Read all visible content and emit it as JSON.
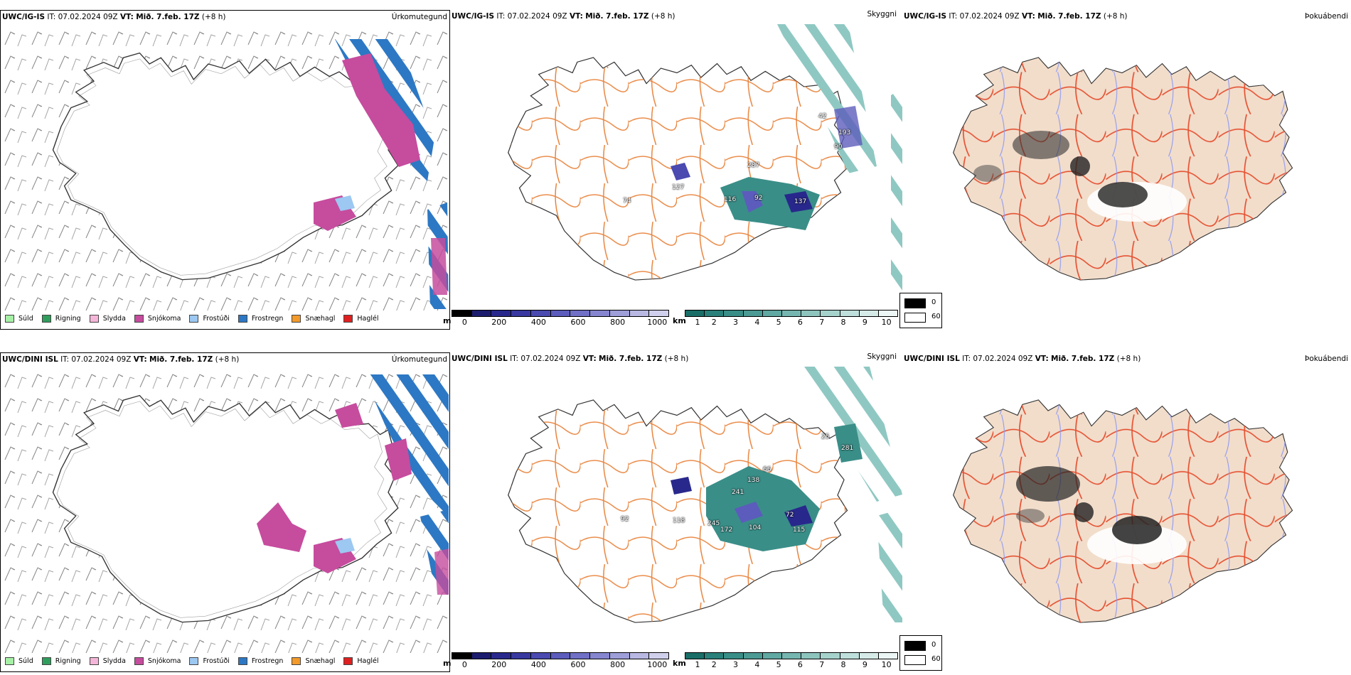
{
  "rows": [
    {
      "precip": {
        "model": "UWC/IG-IS",
        "it_label": "IT:",
        "it_value": "07.02.2024 09Z",
        "vt_label": "VT:",
        "vt_value": "Mið. 7.feb. 17Z",
        "lead": "(+8 h)",
        "name": "Úrkomutegund"
      },
      "cloud": {
        "model": "UWC/IG-IS",
        "it_label": "IT:",
        "it_value": "07.02.2024 09Z",
        "vt_label": "VT:",
        "vt_value": "Mið. 7.feb. 17Z",
        "lead": "(+8 h)",
        "name": "Skyggni",
        "labels": [
          "42",
          "193",
          "90",
          "287",
          "127",
          "116",
          "92",
          "137",
          "74"
        ]
      },
      "fog": {
        "model": "UWC/IG-IS",
        "it_label": "IT:",
        "it_value": "07.02.2024 09Z",
        "vt_label": "VT:",
        "vt_value": "Mið. 7.feb. 17Z",
        "lead": "(+8 h)",
        "name": "Þokuábendi"
      }
    },
    {
      "precip": {
        "model": "UWC/DINI ISL",
        "it_label": "IT:",
        "it_value": "07.02.2024 09Z",
        "vt_label": "VT:",
        "vt_value": "Mið. 7.feb. 17Z",
        "lead": "(+8 h)",
        "name": "Úrkomutegund"
      },
      "cloud": {
        "model": "UWC/DINI ISL",
        "it_label": "IT:",
        "it_value": "07.02.2024 09Z",
        "vt_label": "VT:",
        "vt_value": "Mið. 7.feb. 17Z",
        "lead": "(+8 h)",
        "name": "Skyggni",
        "labels": [
          "25",
          "281",
          "66",
          "138",
          "241",
          "245",
          "172",
          "104",
          "72",
          "115",
          "118",
          "92"
        ]
      },
      "fog": {
        "model": "UWC/DINI ISL",
        "it_label": "IT:",
        "it_value": "07.02.2024 09Z",
        "vt_label": "VT:",
        "vt_value": "Mið. 7.feb. 17Z",
        "lead": "(+8 h)",
        "name": "Þokuábendi"
      }
    }
  ],
  "precip_legend": [
    {
      "label": "Súld",
      "color": "#a6f0a6"
    },
    {
      "label": "Rigning",
      "color": "#2f9d5c"
    },
    {
      "label": "Slydda",
      "color": "#f4b6d8"
    },
    {
      "label": "Snjókoma",
      "color": "#c64c9e"
    },
    {
      "label": "Frostúði",
      "color": "#9cc8f2"
    },
    {
      "label": "Frostregn",
      "color": "#2d78c4"
    },
    {
      "label": "Snæhagl",
      "color": "#f39a2a"
    },
    {
      "label": "Haglél",
      "color": "#e02020"
    }
  ],
  "cbar_m": {
    "unit": "m",
    "ticks": [
      "0",
      "200",
      "400",
      "600",
      "800",
      "1000"
    ],
    "colors": [
      "#000000",
      "#1c1c6e",
      "#28288c",
      "#3838a0",
      "#4a4ab0",
      "#5c5cbc",
      "#7070c6",
      "#8686d0",
      "#9e9ed8",
      "#b8b8e2",
      "#d0d0ec"
    ]
  },
  "cbar_km": {
    "unit": "km",
    "ticks": [
      "1",
      "2",
      "3",
      "4",
      "5",
      "6",
      "7",
      "8",
      "9",
      "10"
    ],
    "colors": [
      "#1a6e68",
      "#2a807a",
      "#3a8e88",
      "#4c9a94",
      "#60a8a2",
      "#76b6b0",
      "#8ec4be",
      "#a6d2cc",
      "#bedfdb",
      "#d6ebe8",
      "#ecf6f4"
    ]
  },
  "fog_legend": [
    {
      "label": "0",
      "color": "#000000"
    },
    {
      "label": "60",
      "color": "#ffffff"
    }
  ]
}
